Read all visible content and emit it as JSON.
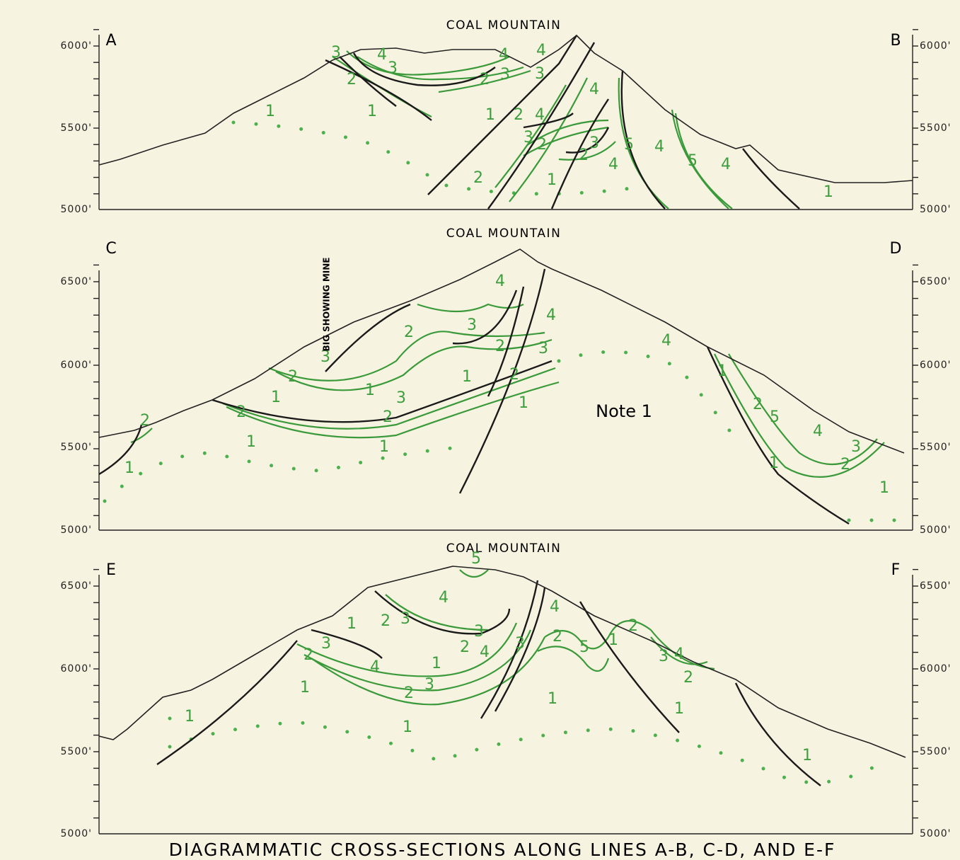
{
  "title": "DIAGRAMMATIC CROSS-SECTIONS ALONG LINES A-B, C-D, AND E-F",
  "sections": [
    {
      "name": "COAL MOUNTAIN",
      "start": "A",
      "end": "B",
      "left_elevations": [
        "6000'",
        "5500'",
        "5000'"
      ],
      "right_elevations": [
        "6000'",
        "5500'",
        "5000'"
      ],
      "units": [
        "3",
        "4",
        "3",
        "2",
        "4",
        "3",
        "2",
        "4",
        "3",
        "1",
        "1",
        "1",
        "2",
        "4",
        "4",
        "3",
        "2",
        "2",
        "3",
        "4",
        "4",
        "5",
        "5",
        "4",
        "1",
        "2",
        "1"
      ]
    },
    {
      "name": "COAL MOUNTAIN",
      "start": "C",
      "end": "D",
      "left_elevations": [
        "6500'",
        "6000'",
        "5500'",
        "5000'"
      ],
      "right_elevations": [
        "6500'",
        "6000'",
        "5500'",
        "5000'"
      ],
      "mine": "BIG SHOWING MINE",
      "note": "Note 1",
      "units": [
        "4",
        "3",
        "2",
        "2",
        "3",
        "4",
        "3",
        "2",
        "1",
        "2",
        "1",
        "1",
        "3",
        "2",
        "1",
        "2",
        "1",
        "1",
        "2",
        "1",
        "4",
        "1",
        "2",
        "5",
        "4",
        "3",
        "1",
        "2",
        "1"
      ]
    },
    {
      "name": "COAL MOUNTAIN",
      "start": "E",
      "end": "F",
      "left_elevations": [
        "6500'",
        "6000'",
        "5500'",
        "5000'"
      ],
      "right_elevations": [
        "6500'",
        "6000'",
        "5500'",
        "5000'"
      ],
      "units": [
        "5",
        "4",
        "1",
        "2",
        "3",
        "3",
        "2",
        "4",
        "3",
        "4",
        "2",
        "5",
        "1",
        "2",
        "3",
        "4",
        "2",
        "1",
        "4",
        "3",
        "2",
        "3",
        "2",
        "1",
        "1",
        "1",
        "1",
        "1",
        "1"
      ]
    }
  ]
}
